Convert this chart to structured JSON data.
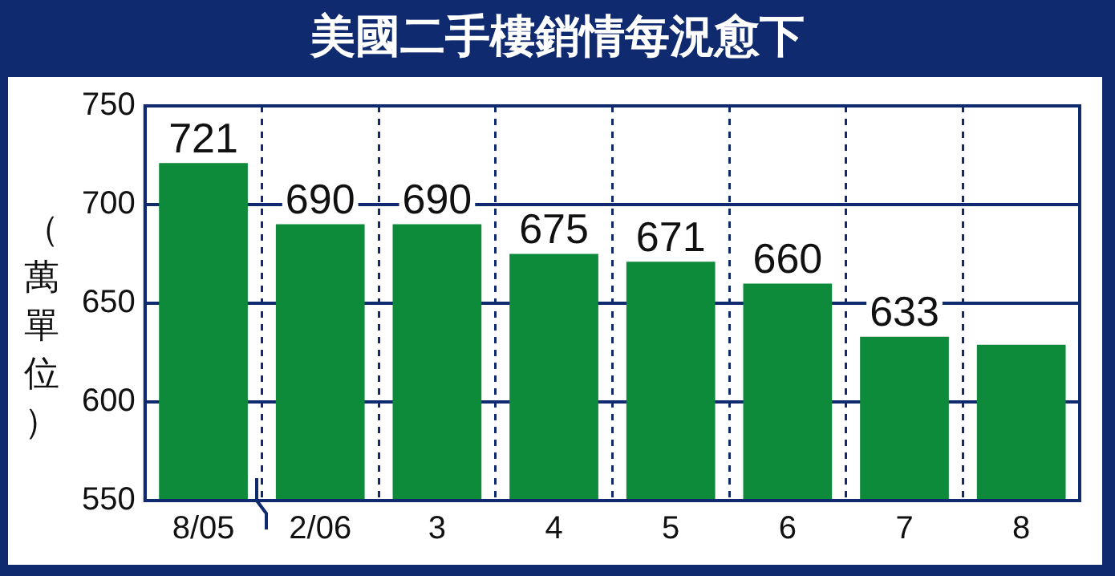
{
  "chart_data": {
    "type": "bar",
    "title": "美國二手樓銷情每況愈下",
    "ylabel": "（萬單位）",
    "categories": [
      "8/05",
      "2/06",
      "3",
      "4",
      "5",
      "6",
      "7",
      "8"
    ],
    "values": [
      721,
      690,
      690,
      675,
      671,
      660,
      633,
      629
    ],
    "value_labels": [
      "721",
      "690",
      "690",
      "675",
      "671",
      "660",
      "633",
      null
    ],
    "color": "#0d8a3a",
    "ylim": [
      550,
      750
    ],
    "yticks": [
      550,
      600,
      650,
      700,
      750
    ],
    "grid": true,
    "legend": false
  }
}
